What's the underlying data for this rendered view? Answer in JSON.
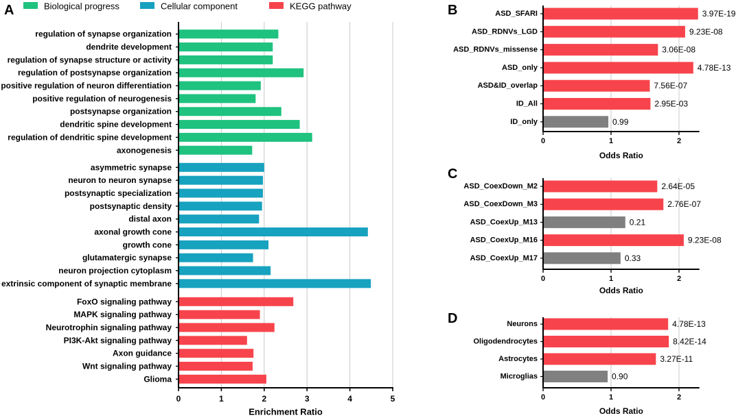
{
  "chart_data": [
    {
      "panel": "A",
      "type": "bar",
      "orientation": "horizontal",
      "xlabel": "Enrichment Ratio",
      "xlim": [
        0,
        5
      ],
      "xticks": [
        0,
        1,
        2,
        3,
        4,
        5
      ],
      "grid": true,
      "legend": [
        {
          "name": "Biological progress",
          "color": "#1fc27f"
        },
        {
          "name": "Cellular component",
          "color": "#17a2bf"
        },
        {
          "name": "KEGG pathway",
          "color": "#f7444c"
        }
      ],
      "groups": [
        {
          "name": "Biological progress",
          "color": "#1fc27f",
          "categories": [
            "regulation of synapse organization",
            "dendrite development",
            "regulation of synapse structure or activity",
            "regulation of postsynapse organization",
            "positive regulation of neuron differentiation",
            "positive regulation of neurogenesis",
            "postsynapse organization",
            "dendritic spine development",
            "regulation of dendritic spine development",
            "axonogenesis"
          ],
          "values": [
            2.33,
            2.2,
            2.2,
            2.92,
            1.92,
            1.8,
            2.4,
            2.83,
            3.12,
            1.72
          ]
        },
        {
          "name": "Cellular component",
          "color": "#17a2bf",
          "categories": [
            "asymmetric synapse",
            "neuron to neuron synapse",
            "postsynaptic specialization",
            "postsynaptic density",
            "distal axon",
            "axonal growth cone",
            "growth cone",
            "glutamatergic synapse",
            "neuron projection cytoplasm",
            "extrinsic component of synaptic membrane"
          ],
          "values": [
            2.0,
            1.97,
            1.97,
            1.95,
            1.88,
            4.42,
            2.1,
            1.74,
            2.15,
            4.49
          ]
        },
        {
          "name": "KEGG pathway",
          "color": "#f7444c",
          "categories": [
            "FoxO signaling pathway",
            "MAPK signaling pathway",
            "Neurotrophin signaling pathway",
            "PI3K-Akt signaling pathway",
            "Axon guidance",
            "Wnt signaling pathway",
            "Glioma"
          ],
          "values": [
            2.68,
            1.9,
            2.24,
            1.6,
            1.75,
            1.73,
            2.05
          ]
        }
      ]
    },
    {
      "panel": "B",
      "type": "bar",
      "orientation": "horizontal",
      "xlabel": "Odds Ratio",
      "xlim": [
        0,
        2.3
      ],
      "xticks": [
        0,
        1,
        2
      ],
      "grid": true,
      "categories": [
        "ASD_SFARI",
        "ASD_RDNVs_LGD",
        "ASD_RDNVs_missense",
        "ASD_only",
        "ASD&ID_overlap",
        "ID_All",
        "ID_only"
      ],
      "values": [
        2.28,
        2.09,
        1.69,
        2.21,
        1.57,
        1.58,
        0.96
      ],
      "labels": [
        "3.97E-19",
        "9.23E-08",
        "3.06E-08",
        "4.78E-13",
        "7.56E-07",
        "2.95E-03",
        "0.99"
      ],
      "colors": [
        "#f7444c",
        "#f7444c",
        "#f7444c",
        "#f7444c",
        "#f7444c",
        "#f7444c",
        "#808080"
      ]
    },
    {
      "panel": "C",
      "type": "bar",
      "orientation": "horizontal",
      "xlabel": "Odds Ratio",
      "xlim": [
        0,
        2.3
      ],
      "xticks": [
        0,
        1,
        2
      ],
      "grid": true,
      "categories": [
        "ASD_CoexDown_M2",
        "ASD_CoexDown_M3",
        "ASD_CoexUp_M13",
        "ASD_CoexUp_M16",
        "ASD_CoexUp_M17"
      ],
      "values": [
        1.68,
        1.77,
        1.21,
        2.07,
        1.14
      ],
      "labels": [
        "2.64E-05",
        "2.76E-07",
        "0.21",
        "9.23E-08",
        "0.33"
      ],
      "colors": [
        "#f7444c",
        "#f7444c",
        "#808080",
        "#f7444c",
        "#808080"
      ]
    },
    {
      "panel": "D",
      "type": "bar",
      "orientation": "horizontal",
      "xlabel": "Odds Ratio",
      "xlim": [
        0,
        2.3
      ],
      "xticks": [
        0,
        1,
        2
      ],
      "grid": true,
      "categories": [
        "Neurons",
        "Oligodendrocytes",
        "Astrocytes",
        "Microglias"
      ],
      "values": [
        1.84,
        1.85,
        1.66,
        0.95
      ],
      "labels": [
        "4.78E-13",
        "8.42E-14",
        "3.27E-11",
        "0.90"
      ],
      "colors": [
        "#f7444c",
        "#f7444c",
        "#f7444c",
        "#808080"
      ]
    }
  ]
}
